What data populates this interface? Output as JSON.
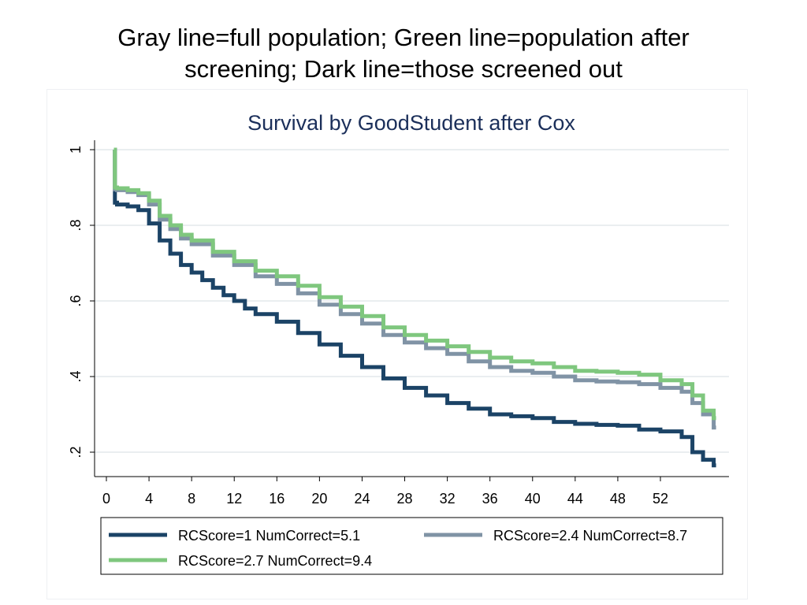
{
  "slide": {
    "title_line1": "Gray line=full population; Green line=population after",
    "title_line2": "screening; Dark line=those screened out"
  },
  "colors": {
    "dark": "#1b4366",
    "gray": "#8093a5",
    "green": "#7fc77e",
    "title": "#1b2f5a",
    "grid": "#e4e8ec"
  },
  "chart_data": {
    "type": "line",
    "title": "Survival by GoodStudent after Cox",
    "xlabel": "",
    "ylabel": "",
    "xlim": [
      -1,
      58
    ],
    "ylim": [
      0.14,
      1.02
    ],
    "xticks": [
      0,
      4,
      8,
      12,
      16,
      20,
      24,
      28,
      32,
      36,
      40,
      44,
      48,
      52
    ],
    "yticks": [
      {
        "value": 0.2,
        "label": ".2"
      },
      {
        "value": 0.4,
        "label": ".4"
      },
      {
        "value": 0.6,
        "label": ".6"
      },
      {
        "value": 0.8,
        "label": ".8"
      },
      {
        "value": 1.0,
        "label": "1"
      }
    ],
    "grid": true,
    "legend_position": "bottom",
    "series": [
      {
        "name": "RCScore=1 NumCorrect=5.1",
        "color_key": "dark",
        "x": [
          0.7,
          0.8,
          1,
          2,
          3,
          4,
          5,
          6,
          7,
          8,
          9,
          10,
          11,
          12,
          13,
          14,
          16,
          18,
          20,
          22,
          24,
          26,
          28,
          30,
          32,
          34,
          36,
          38,
          40,
          42,
          44,
          46,
          48,
          50,
          52,
          54,
          55,
          56,
          57
        ],
        "y": [
          1.0,
          0.86,
          0.855,
          0.85,
          0.84,
          0.805,
          0.76,
          0.725,
          0.695,
          0.675,
          0.655,
          0.635,
          0.615,
          0.6,
          0.58,
          0.565,
          0.545,
          0.515,
          0.485,
          0.455,
          0.425,
          0.395,
          0.37,
          0.35,
          0.33,
          0.315,
          0.3,
          0.295,
          0.29,
          0.28,
          0.275,
          0.272,
          0.27,
          0.26,
          0.255,
          0.24,
          0.2,
          0.18,
          0.165
        ]
      },
      {
        "name": "RCScore=2.4 NumCorrect=8.7",
        "color_key": "gray",
        "x": [
          0.7,
          0.8,
          1,
          2,
          3,
          4,
          5,
          6,
          7,
          8,
          10,
          12,
          14,
          16,
          18,
          20,
          22,
          24,
          26,
          28,
          30,
          32,
          34,
          36,
          38,
          40,
          42,
          44,
          46,
          48,
          50,
          52,
          54,
          55,
          56,
          57
        ],
        "y": [
          1.0,
          0.895,
          0.893,
          0.888,
          0.88,
          0.855,
          0.815,
          0.79,
          0.765,
          0.75,
          0.72,
          0.695,
          0.665,
          0.645,
          0.62,
          0.59,
          0.565,
          0.54,
          0.51,
          0.49,
          0.475,
          0.46,
          0.44,
          0.425,
          0.415,
          0.41,
          0.4,
          0.39,
          0.387,
          0.385,
          0.38,
          0.37,
          0.36,
          0.33,
          0.3,
          0.265
        ]
      },
      {
        "name": "RCScore=2.7 NumCorrect=9.4",
        "color_key": "green",
        "x": [
          0.7,
          0.8,
          1,
          2,
          3,
          4,
          5,
          6,
          7,
          8,
          10,
          12,
          14,
          16,
          18,
          20,
          22,
          24,
          26,
          28,
          30,
          32,
          34,
          36,
          38,
          40,
          42,
          44,
          46,
          48,
          50,
          52,
          54,
          55,
          56,
          57
        ],
        "y": [
          1.0,
          0.9,
          0.898,
          0.893,
          0.885,
          0.865,
          0.825,
          0.8,
          0.775,
          0.76,
          0.73,
          0.705,
          0.68,
          0.665,
          0.64,
          0.61,
          0.585,
          0.56,
          0.53,
          0.51,
          0.495,
          0.48,
          0.465,
          0.45,
          0.44,
          0.435,
          0.425,
          0.415,
          0.413,
          0.41,
          0.405,
          0.39,
          0.38,
          0.35,
          0.31,
          0.29
        ]
      }
    ]
  }
}
